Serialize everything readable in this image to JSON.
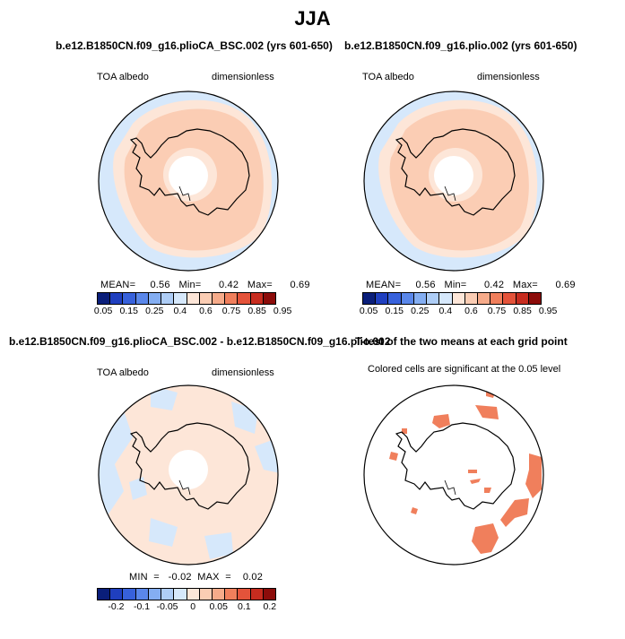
{
  "figure": {
    "title": "JJA",
    "panel1": {
      "title": "b.e12.B1850CN.f09_g16.plioCA_BSC.002 (yrs 601-650)",
      "left_label": "TOA albedo",
      "right_label": "dimensionless",
      "stats": "MEAN=     0.56   Min=      0.42   Max=      0.69"
    },
    "panel2": {
      "title": "b.e12.B1850CN.f09_g16.plio.002 (yrs 601-650)",
      "left_label": "TOA albedo",
      "right_label": "dimensionless",
      "stats": "MEAN=     0.56   Min=      0.42   Max=      0.69"
    },
    "panel3": {
      "title": "b.e12.B1850CN.f09_g16.plioCA_BSC.002 - b.e12.B1850CN.f09_g16.plio.002",
      "left_label": "TOA albedo",
      "right_label": "dimensionless",
      "stats": "MIN  =   -0.02  MAX  =    0.02"
    },
    "panel4": {
      "title": "T-test of the two means at each grid point",
      "subtitle": "Colored cells are significant at the 0.05 level"
    }
  },
  "colorbar_abs": {
    "colors": [
      "#0a1e7a",
      "#1f3fbf",
      "#3761db",
      "#5a87ea",
      "#84aef2",
      "#aecdf6",
      "#d6e8fb",
      "#fde6d8",
      "#fbcdb4",
      "#f6ab8a",
      "#f07f5c",
      "#e4533a",
      "#c72c1f",
      "#8c0c0a"
    ],
    "tick_labels": [
      "0.05",
      "0.15",
      "0.25",
      "0.4",
      "0.6",
      "0.75",
      "0.85",
      "0.95"
    ]
  },
  "colorbar_diff": {
    "colors": [
      "#0a1e7a",
      "#1f3fbf",
      "#3761db",
      "#5a87ea",
      "#84aef2",
      "#aecdf6",
      "#d6e8fb",
      "#fde6d8",
      "#fbcdb4",
      "#f6ab8a",
      "#f07f5c",
      "#e4533a",
      "#c72c1f",
      "#8c0c0a"
    ],
    "tick_labels": [
      "-0.2",
      "-0.1",
      "-0.05",
      "0",
      "0.05",
      "0.1",
      "0.2"
    ]
  },
  "map_colors": {
    "ocean_low": "#d6e8fb",
    "band_light": "#fde6d8",
    "band_mid": "#fbcdb4",
    "pole_white": "#ffffff",
    "ttest_fill": "#f07f5c"
  }
}
